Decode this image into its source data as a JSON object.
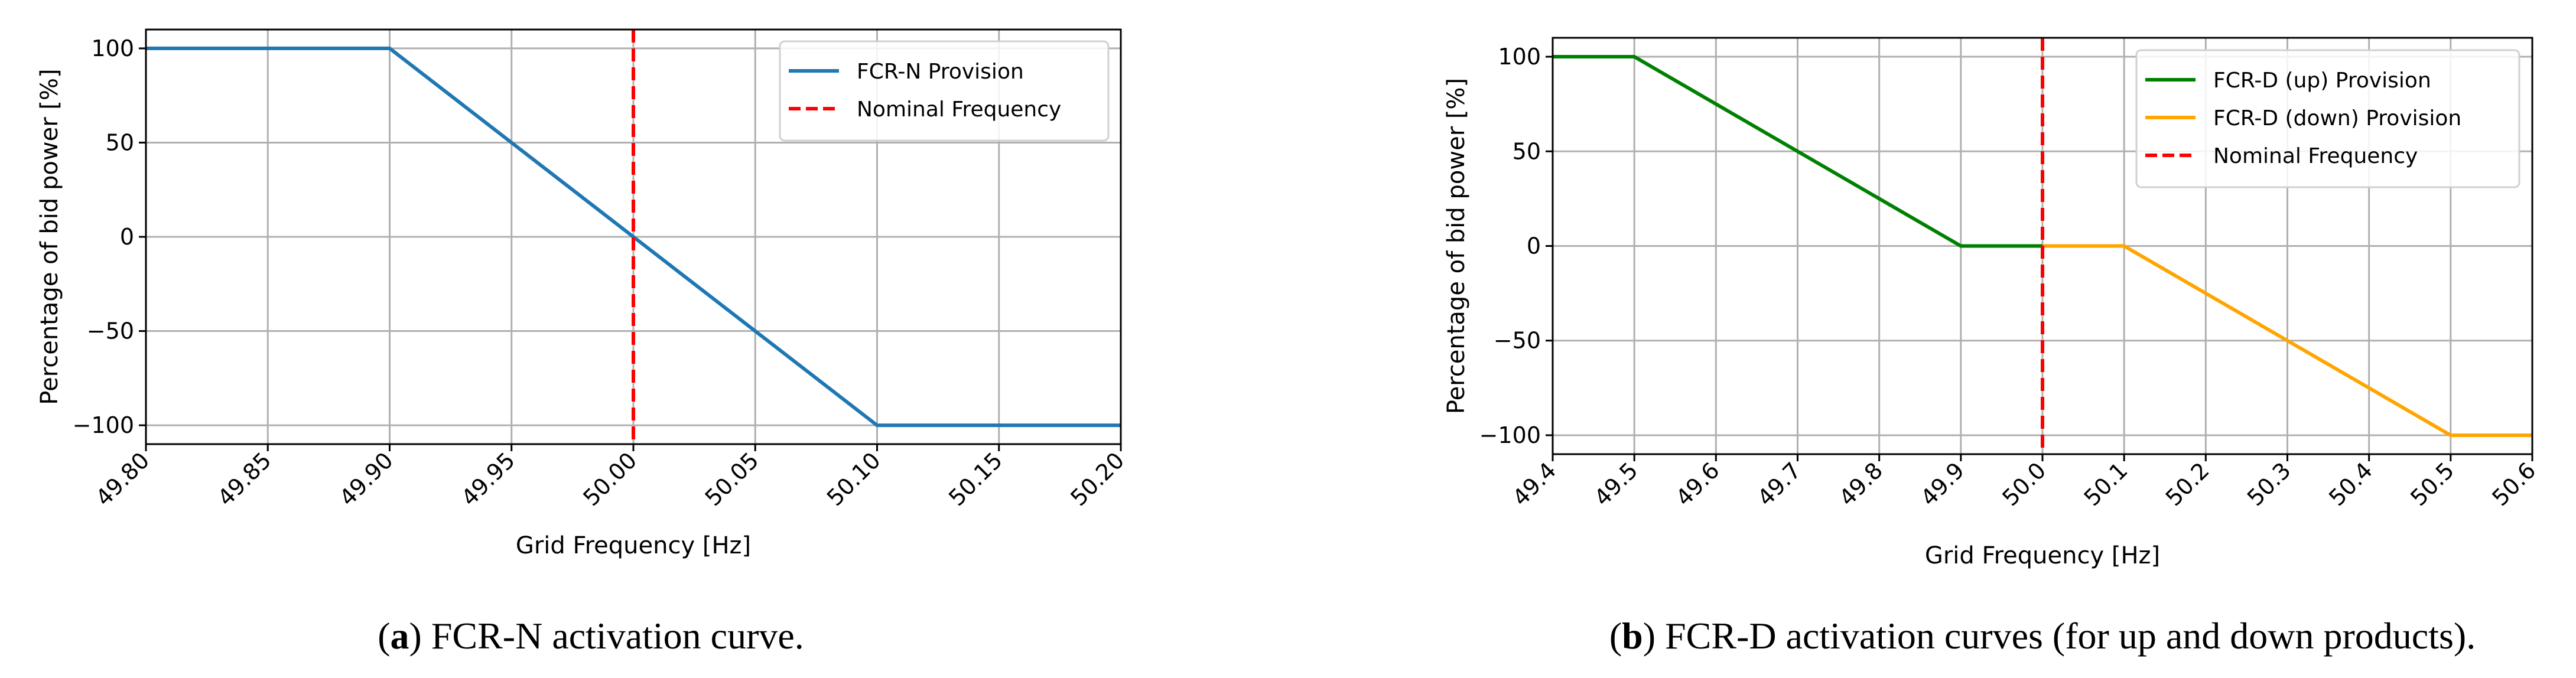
{
  "chart_data": [
    {
      "type": "line",
      "caption_label": "a",
      "caption_text": "FCR-N activation curve.",
      "xlabel": "Grid Frequency [Hz]",
      "ylabel": "Percentage of bid power [%]",
      "xlim": [
        49.8,
        50.2
      ],
      "ylim": [
        -110,
        110
      ],
      "xticks": [
        "49.80",
        "49.85",
        "49.90",
        "49.95",
        "50.00",
        "50.05",
        "50.10",
        "50.15",
        "50.20"
      ],
      "yticks": [
        "100",
        "50",
        "0",
        "−50",
        "−100"
      ],
      "ytick_values": [
        100,
        50,
        0,
        -50,
        -100
      ],
      "grid": true,
      "legend_position": "top-right",
      "series": [
        {
          "name": "FCR-N Provision",
          "color": "#1f77b4",
          "style": "solid",
          "x": [
            49.8,
            49.9,
            50.1,
            50.2
          ],
          "y": [
            100,
            100,
            -100,
            -100
          ]
        }
      ],
      "vlines": [
        {
          "name": "Nominal Frequency",
          "x": 50.0,
          "color": "#ff0000",
          "style": "dashed"
        }
      ]
    },
    {
      "type": "line",
      "caption_label": "b",
      "caption_text": "FCR-D activation curves (for up and down products).",
      "xlabel": "Grid Frequency [Hz]",
      "ylabel": "Percentage of bid power [%]",
      "xlim": [
        49.4,
        50.6
      ],
      "ylim": [
        -110,
        110
      ],
      "xticks": [
        "49.4",
        "49.5",
        "49.6",
        "49.7",
        "49.8",
        "49.9",
        "50.0",
        "50.1",
        "50.2",
        "50.3",
        "50.4",
        "50.5",
        "50.6"
      ],
      "yticks": [
        "100",
        "50",
        "0",
        "−50",
        "−100"
      ],
      "ytick_values": [
        100,
        50,
        0,
        -50,
        -100
      ],
      "grid": true,
      "legend_position": "top-right",
      "series": [
        {
          "name": "FCR-D (up) Provision",
          "color": "#008000",
          "style": "solid",
          "x": [
            49.4,
            49.5,
            49.9,
            50.0
          ],
          "y": [
            100,
            100,
            0,
            0
          ]
        },
        {
          "name": "FCR-D (down) Provision",
          "color": "#ffa500",
          "style": "solid",
          "x": [
            50.0,
            50.1,
            50.5,
            50.6
          ],
          "y": [
            0,
            0,
            -100,
            -100
          ]
        }
      ],
      "vlines": [
        {
          "name": "Nominal Frequency",
          "x": 50.0,
          "color": "#ff0000",
          "style": "dashed"
        }
      ]
    }
  ]
}
